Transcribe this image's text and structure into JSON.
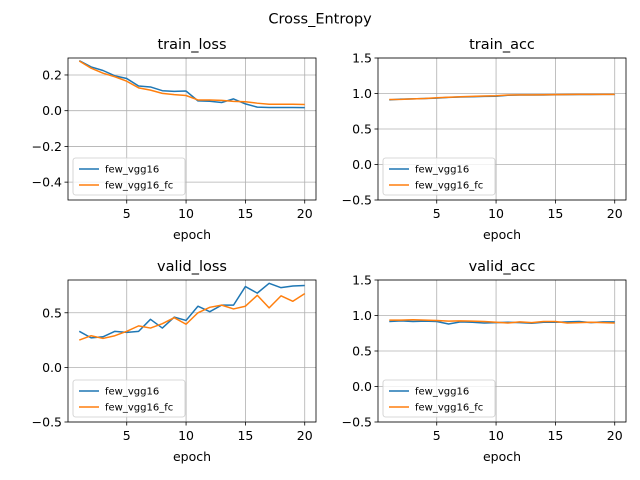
{
  "figure": {
    "suptitle": "Cross_Entropy"
  },
  "chart_data": [
    {
      "type": "line",
      "title": "train_loss",
      "xlabel": "epoch",
      "ylabel": "",
      "xlim": [
        0.05,
        20.95
      ],
      "ylim": [
        -0.5,
        0.295
      ],
      "xticks": [
        5,
        10,
        15,
        20
      ],
      "yticks": [
        -0.4,
        -0.2,
        0.0,
        0.2
      ],
      "ytick_labels": [
        "−0.4",
        "−0.2",
        "0.0",
        "0.2"
      ],
      "grid": true,
      "legend": "lower-left",
      "x": [
        1,
        2,
        3,
        4,
        5,
        6,
        7,
        8,
        9,
        10,
        11,
        12,
        13,
        14,
        15,
        16,
        17,
        18,
        19,
        20
      ],
      "series": [
        {
          "name": "few_vgg16",
          "color": "#1f77b4",
          "values": [
            0.28,
            0.245,
            0.225,
            0.195,
            0.18,
            0.138,
            0.133,
            0.112,
            0.108,
            0.11,
            0.055,
            0.053,
            0.046,
            0.066,
            0.038,
            0.02,
            0.018,
            0.018,
            0.018,
            0.017
          ]
        },
        {
          "name": "few_vgg16_fc",
          "color": "#ff7f0e",
          "values": [
            0.278,
            0.238,
            0.21,
            0.19,
            0.165,
            0.128,
            0.115,
            0.097,
            0.09,
            0.085,
            0.06,
            0.06,
            0.058,
            0.052,
            0.05,
            0.042,
            0.036,
            0.036,
            0.036,
            0.035
          ]
        }
      ]
    },
    {
      "type": "line",
      "title": "train_acc",
      "xlabel": "epoch",
      "ylabel": "",
      "xlim": [
        0.05,
        20.95
      ],
      "ylim": [
        -0.5,
        1.5
      ],
      "xticks": [
        5,
        10,
        15,
        20
      ],
      "yticks": [
        -0.5,
        0.0,
        0.5,
        1.0,
        1.5
      ],
      "ytick_labels": [
        "−0.5",
        "0.0",
        "0.5",
        "1.0",
        "1.5"
      ],
      "grid": true,
      "legend": "lower-left",
      "x": [
        1,
        2,
        3,
        4,
        5,
        6,
        7,
        8,
        9,
        10,
        11,
        12,
        13,
        14,
        15,
        16,
        17,
        18,
        19,
        20
      ],
      "series": [
        {
          "name": "few_vgg16",
          "color": "#1f77b4",
          "values": [
            0.91,
            0.92,
            0.925,
            0.93,
            0.935,
            0.945,
            0.95,
            0.955,
            0.96,
            0.962,
            0.975,
            0.978,
            0.978,
            0.978,
            0.982,
            0.985,
            0.986,
            0.986,
            0.987,
            0.988
          ]
        },
        {
          "name": "few_vgg16_fc",
          "color": "#ff7f0e",
          "values": [
            0.915,
            0.918,
            0.925,
            0.93,
            0.94,
            0.948,
            0.955,
            0.96,
            0.965,
            0.968,
            0.978,
            0.98,
            0.98,
            0.982,
            0.984,
            0.986,
            0.987,
            0.987,
            0.988,
            0.988
          ]
        }
      ]
    },
    {
      "type": "line",
      "title": "valid_loss",
      "xlabel": "epoch",
      "ylabel": "",
      "xlim": [
        0.05,
        20.95
      ],
      "ylim": [
        -0.5,
        0.8
      ],
      "xticks": [
        5,
        10,
        15,
        20
      ],
      "yticks": [
        -0.5,
        0.0,
        0.5
      ],
      "ytick_labels": [
        "−0.5",
        "0.0",
        "0.5"
      ],
      "grid": true,
      "legend": "lower-left",
      "x": [
        1,
        2,
        3,
        4,
        5,
        6,
        7,
        8,
        9,
        10,
        11,
        12,
        13,
        14,
        15,
        16,
        17,
        18,
        19,
        20
      ],
      "series": [
        {
          "name": "few_vgg16",
          "color": "#1f77b4",
          "values": [
            0.33,
            0.27,
            0.28,
            0.33,
            0.32,
            0.33,
            0.44,
            0.36,
            0.46,
            0.43,
            0.56,
            0.51,
            0.57,
            0.57,
            0.74,
            0.68,
            0.77,
            0.73,
            0.745,
            0.75
          ]
        },
        {
          "name": "few_vgg16_fc",
          "color": "#ff7f0e",
          "values": [
            0.25,
            0.29,
            0.265,
            0.29,
            0.33,
            0.38,
            0.36,
            0.4,
            0.455,
            0.395,
            0.5,
            0.55,
            0.57,
            0.535,
            0.56,
            0.66,
            0.545,
            0.655,
            0.605,
            0.675
          ]
        }
      ]
    },
    {
      "type": "line",
      "title": "valid_acc",
      "xlabel": "epoch",
      "ylabel": "",
      "xlim": [
        0.05,
        20.95
      ],
      "ylim": [
        -0.5,
        1.5
      ],
      "xticks": [
        5,
        10,
        15,
        20
      ],
      "yticks": [
        -0.5,
        0.0,
        0.5,
        1.0,
        1.5
      ],
      "ytick_labels": [
        "−0.5",
        "0.0",
        "0.5",
        "1.0",
        "1.5"
      ],
      "grid": true,
      "legend": "lower-left",
      "x": [
        1,
        2,
        3,
        4,
        5,
        6,
        7,
        8,
        9,
        10,
        11,
        12,
        13,
        14,
        15,
        16,
        17,
        18,
        19,
        20
      ],
      "series": [
        {
          "name": "few_vgg16",
          "color": "#1f77b4",
          "values": [
            0.915,
            0.925,
            0.915,
            0.92,
            0.915,
            0.88,
            0.91,
            0.905,
            0.895,
            0.9,
            0.905,
            0.9,
            0.89,
            0.905,
            0.905,
            0.91,
            0.915,
            0.9,
            0.91,
            0.91
          ]
        },
        {
          "name": "few_vgg16_fc",
          "color": "#ff7f0e",
          "values": [
            0.935,
            0.935,
            0.94,
            0.935,
            0.93,
            0.92,
            0.925,
            0.92,
            0.915,
            0.905,
            0.895,
            0.91,
            0.9,
            0.915,
            0.915,
            0.895,
            0.9,
            0.905,
            0.9,
            0.895
          ]
        }
      ]
    }
  ]
}
